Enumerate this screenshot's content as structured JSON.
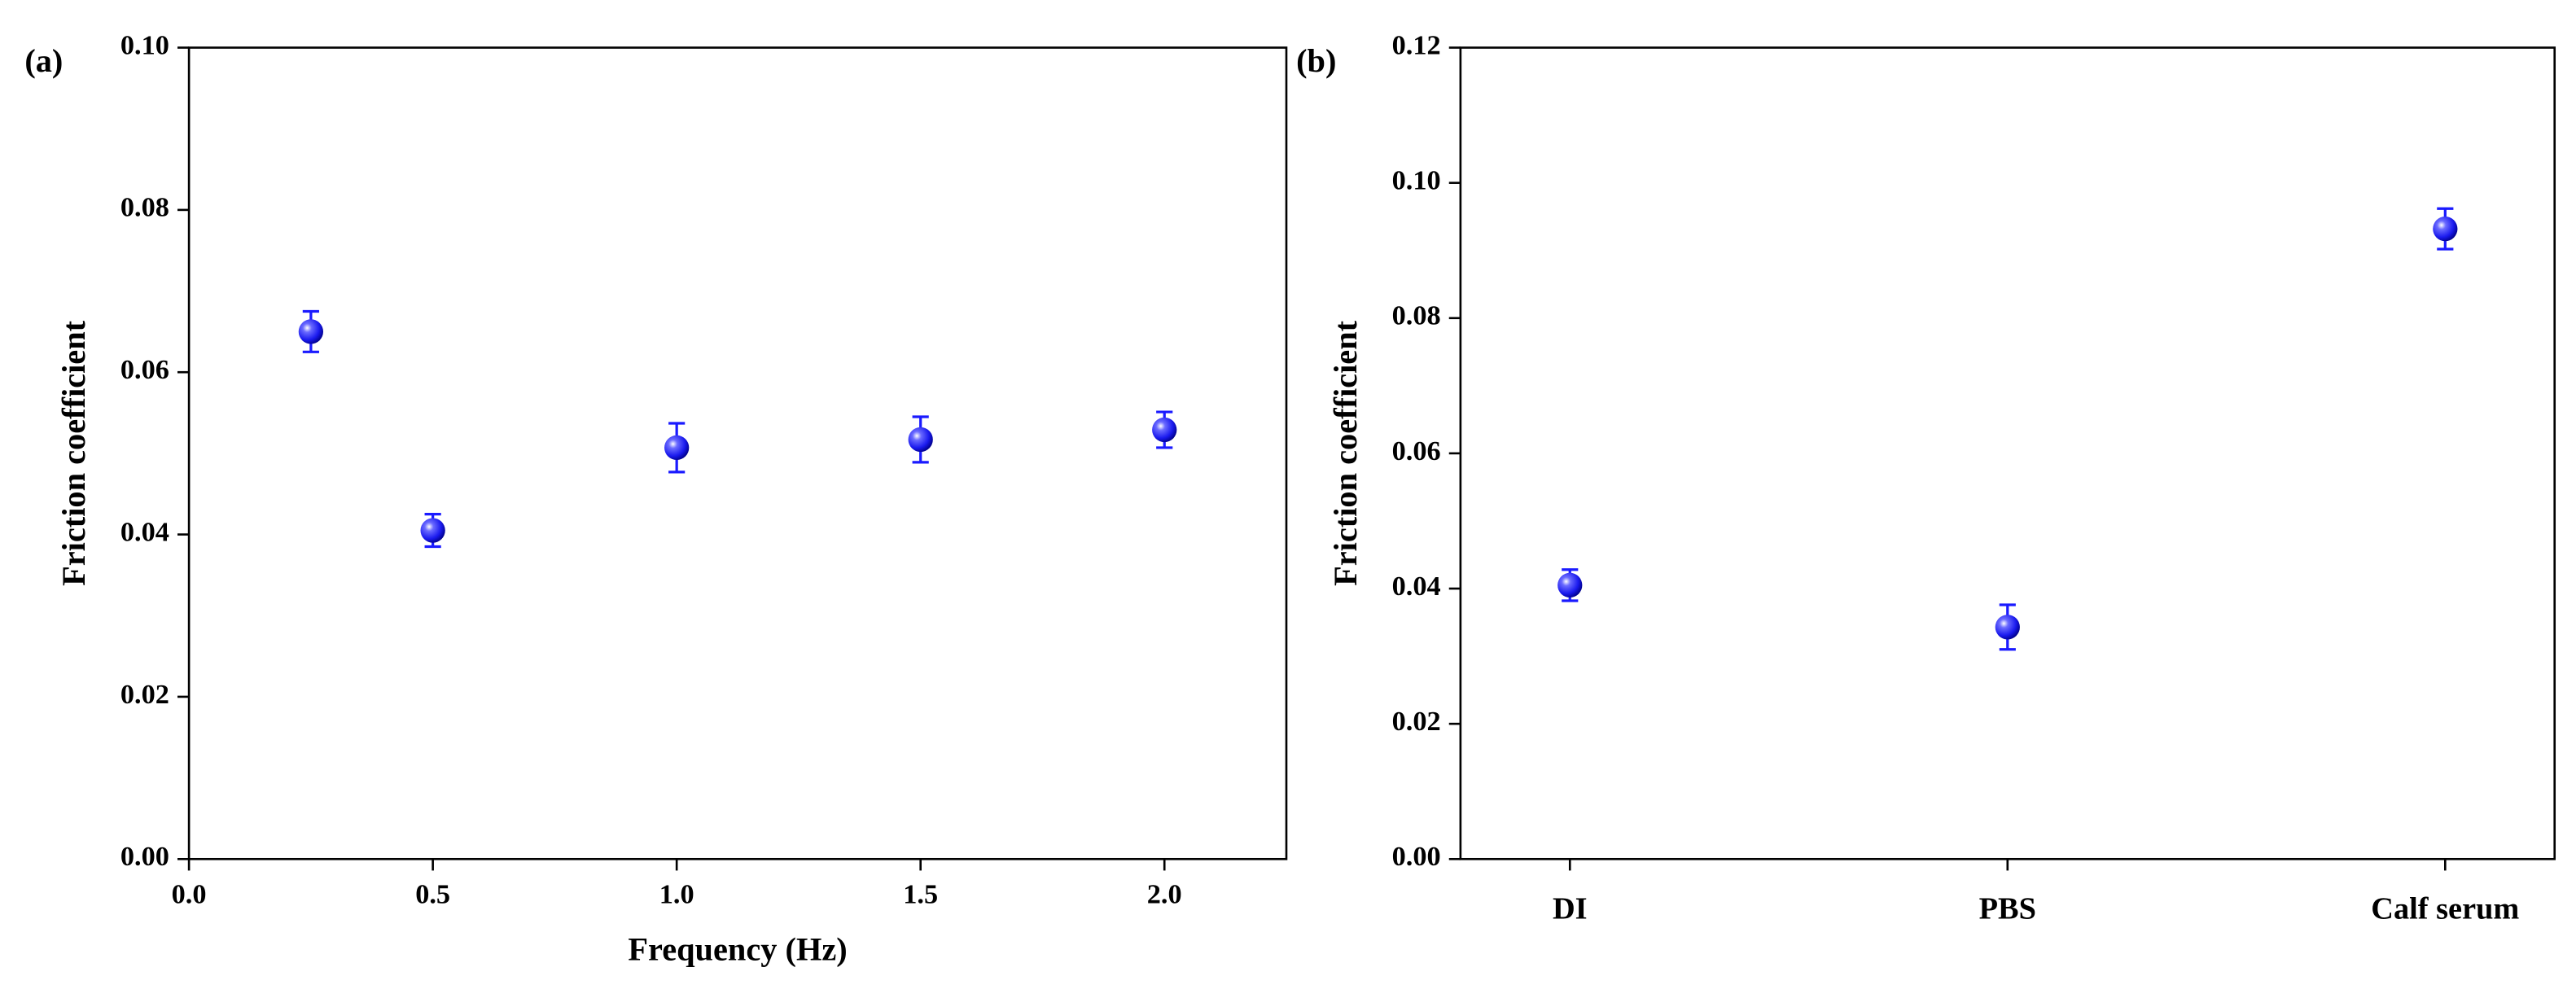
{
  "chart_data": [
    {
      "type": "scatter",
      "panel_label": "(a)",
      "x_label": "Frequency (Hz)",
      "y_label": "Friction coefficient",
      "x": [
        0.25,
        0.5,
        1.0,
        1.5,
        2.0
      ],
      "values": [
        0.065,
        0.0405,
        0.0507,
        0.0517,
        0.0529
      ],
      "errors": [
        0.0025,
        0.002,
        0.003,
        0.0028,
        0.0022
      ],
      "color": "#1a1aff",
      "xlim": [
        0,
        2.25
      ],
      "xticks": [
        {
          "value": 0,
          "label": "0.0"
        },
        0.5,
        {
          "value": 1,
          "label": "1.0"
        },
        1.5,
        {
          "value": 2,
          "label": "2.0"
        }
      ],
      "ylim": [
        0,
        0.1
      ],
      "yticks": [
        {
          "value": 0,
          "label": "0.00"
        },
        0.02,
        0.04,
        0.06,
        0.08,
        {
          "value": 0.1,
          "label": "0.10"
        }
      ]
    },
    {
      "type": "category_scatter",
      "panel_label": "(b)",
      "y_label": "Friction coefficient",
      "categories": [
        "DI",
        "PBS",
        "Calf serum"
      ],
      "values": [
        0.0405,
        0.0343,
        0.0932
      ],
      "errors": [
        0.0023,
        0.0033,
        0.003
      ],
      "color": "#1a1aff",
      "ylim": [
        0,
        0.12
      ],
      "yticks": [
        {
          "value": 0,
          "label": "0.00"
        },
        0.02,
        0.04,
        0.06,
        0.08,
        {
          "value": 0.1,
          "label": "0.10"
        },
        0.12
      ]
    }
  ]
}
